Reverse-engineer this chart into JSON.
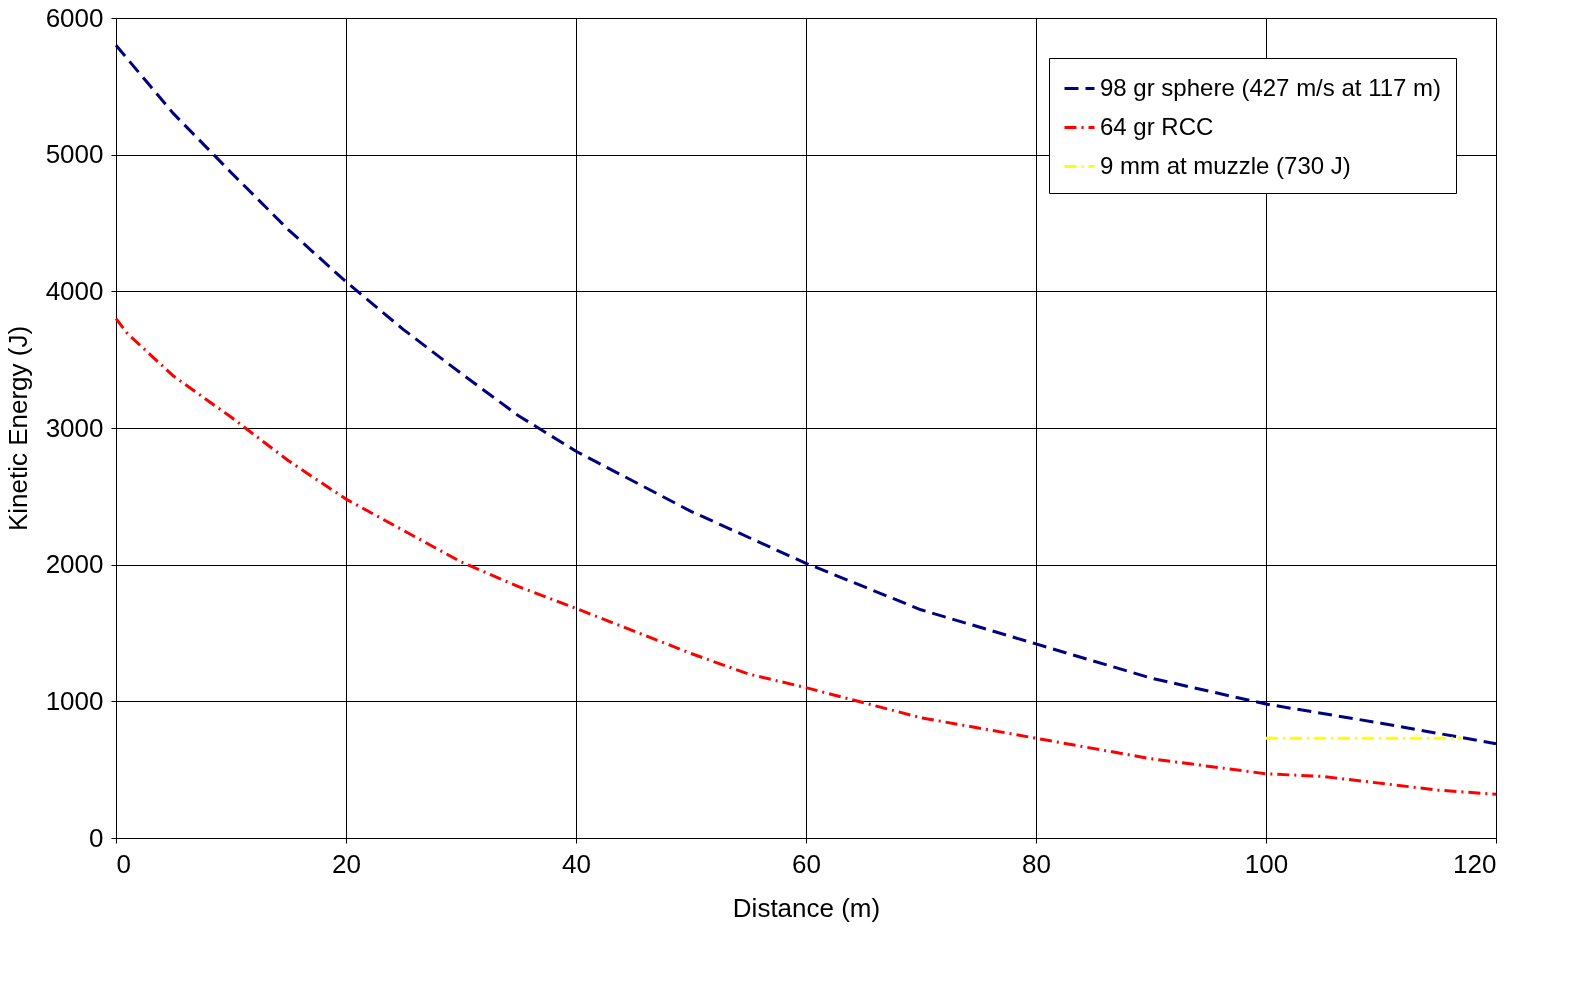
{
  "chart_data": {
    "type": "line",
    "xlabel": "Distance (m)",
    "ylabel": "Kinetic Energy (J)",
    "xlim": [
      0,
      120
    ],
    "xticks": [
      0,
      20,
      40,
      60,
      80,
      100,
      120
    ],
    "ylim": [
      0,
      6000
    ],
    "yticks": [
      0,
      1000,
      2000,
      3000,
      4000,
      5000,
      6000
    ],
    "grid": true,
    "legend": "top right",
    "marker": "none",
    "series": [
      {
        "name": "98 gr sphere (427 m/s at 117 m)",
        "color": "#000080",
        "line_style": "dashed",
        "x": [
          0,
          1,
          2,
          3,
          5,
          10,
          15,
          20,
          25,
          30,
          35,
          40,
          50,
          60,
          70,
          80,
          90,
          100,
          110,
          120
        ],
        "values": [
          5800,
          5700,
          5600,
          5500,
          5300,
          4870,
          4450,
          4070,
          3720,
          3400,
          3090,
          2830,
          2390,
          2010,
          1670,
          1420,
          1170,
          980,
          840,
          690
        ]
      },
      {
        "name": "64 gr RCC",
        "color": "#ff0000",
        "line_style": "dashdot",
        "x": [
          0,
          1,
          5,
          10,
          15,
          20,
          25,
          30,
          35,
          40,
          50,
          55,
          60,
          70,
          80,
          90,
          100,
          105,
          115,
          120
        ],
        "values": [
          3800,
          3690,
          3380,
          3080,
          2760,
          2480,
          2250,
          2020,
          1840,
          1680,
          1350,
          1200,
          1100,
          880,
          730,
          580,
          470,
          450,
          350,
          320
        ]
      },
      {
        "name": "9 mm at muzzle (730 J)",
        "color": "#ffff00",
        "line_style": "dashdot",
        "x": [
          100,
          117
        ],
        "values": [
          730,
          730
        ]
      }
    ]
  }
}
